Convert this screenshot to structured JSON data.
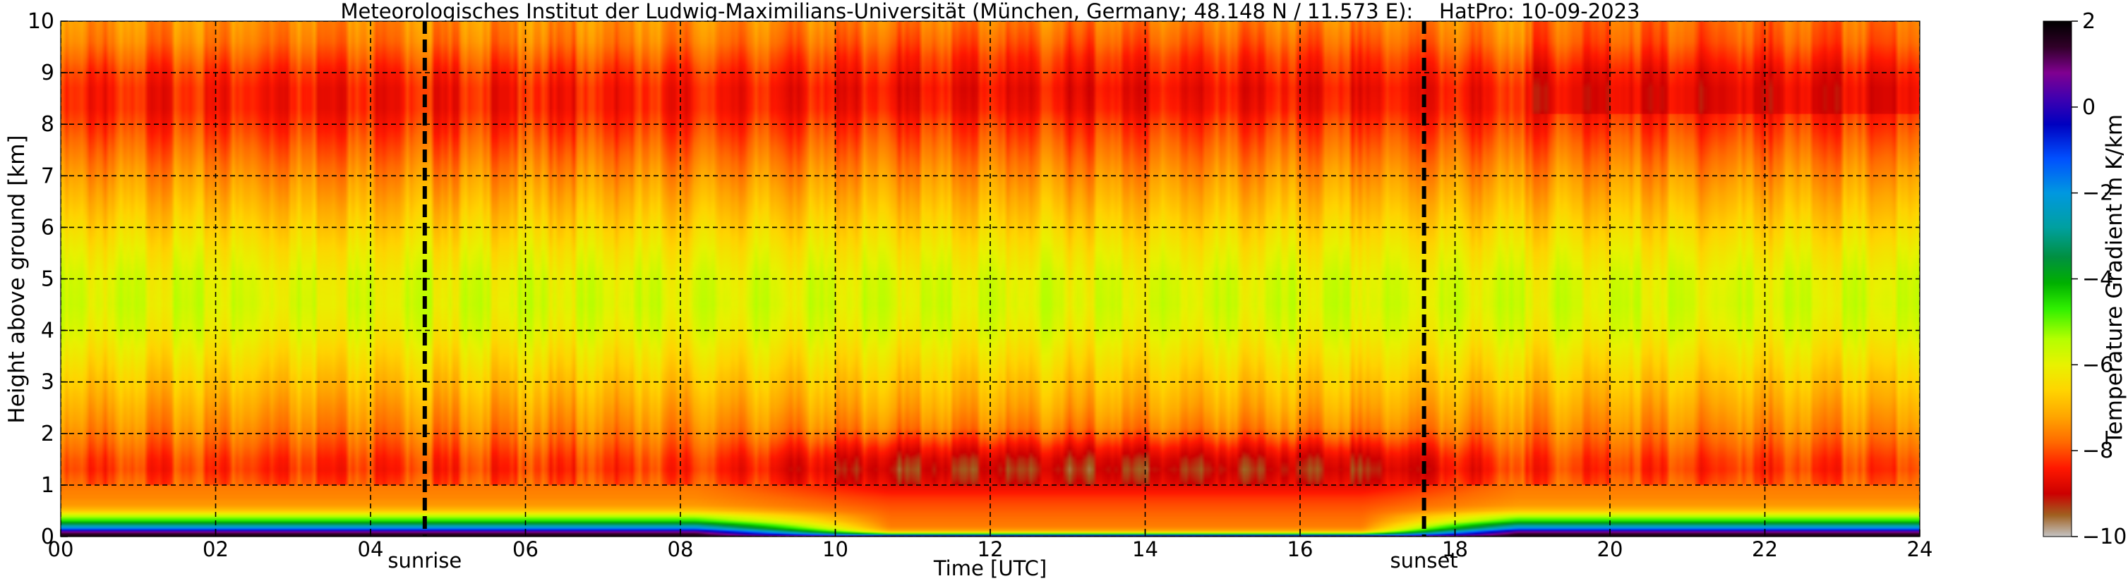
{
  "chart_data": {
    "type": "heatmap",
    "title": "Meteorologisches Institut der Ludwig-Maximilians-Universität (München, Germany; 48.148 N / 11.573 E):    HatPro: 10-09-2023",
    "xlabel": "Time [UTC]",
    "ylabel": "Height above ground [km]",
    "xlim": [
      0,
      24
    ],
    "ylim": [
      0,
      10
    ],
    "x_ticks": [
      0,
      2,
      4,
      6,
      8,
      10,
      12,
      14,
      16,
      18,
      20,
      22,
      24
    ],
    "x_tick_labels": [
      "00",
      "02",
      "04",
      "06",
      "08",
      "10",
      "12",
      "14",
      "16",
      "18",
      "20",
      "22",
      "24"
    ],
    "y_ticks": [
      0,
      1,
      2,
      3,
      4,
      5,
      6,
      7,
      8,
      9,
      10
    ],
    "y_tick_labels": [
      "0",
      "1",
      "2",
      "3",
      "4",
      "5",
      "6",
      "7",
      "8",
      "9",
      "10"
    ],
    "grid": true,
    "events": [
      {
        "label": "sunrise",
        "time": 4.7
      },
      {
        "label": "sunset",
        "time": 17.6
      }
    ],
    "colorbar": {
      "label": "Temperature Gradient in K/km",
      "range": [
        -10,
        2
      ],
      "ticks": [
        2,
        0,
        -2,
        -4,
        -6,
        -8,
        -10
      ],
      "tick_labels": [
        "2",
        "0",
        "−2",
        "−4",
        "−6",
        "−8",
        "−10"
      ],
      "stops": [
        {
          "value": -10.0,
          "color": "#c4c4c4"
        },
        {
          "value": -9.5,
          "color": "#a06020"
        },
        {
          "value": -9.0,
          "color": "#cc0000"
        },
        {
          "value": -8.4,
          "color": "#ff1800"
        },
        {
          "value": -7.8,
          "color": "#ff6a00"
        },
        {
          "value": -7.2,
          "color": "#ffa600"
        },
        {
          "value": -6.6,
          "color": "#ffd400"
        },
        {
          "value": -6.0,
          "color": "#e8f200"
        },
        {
          "value": -5.4,
          "color": "#b4ff00"
        },
        {
          "value": -4.7,
          "color": "#30f000"
        },
        {
          "value": -4.1,
          "color": "#00b000"
        },
        {
          "value": -3.5,
          "color": "#009040"
        },
        {
          "value": -2.8,
          "color": "#00a0a0"
        },
        {
          "value": -2.0,
          "color": "#0098e0"
        },
        {
          "value": -1.2,
          "color": "#0050ff"
        },
        {
          "value": -0.4,
          "color": "#0000c0"
        },
        {
          "value": 0.2,
          "color": "#4000b0"
        },
        {
          "value": 0.8,
          "color": "#800090"
        },
        {
          "value": 1.4,
          "color": "#300028"
        },
        {
          "value": 2.0,
          "color": "#000000"
        }
      ]
    },
    "profile": {
      "heights_km": [
        0.0,
        0.05,
        0.1,
        0.15,
        0.2,
        0.3,
        0.4,
        0.5,
        0.6,
        0.75,
        0.9,
        1.1,
        1.3,
        1.5,
        1.7,
        1.9,
        2.1,
        2.5,
        3.0,
        3.5,
        4.0,
        4.5,
        5.0,
        5.5,
        6.0,
        6.5,
        7.0,
        7.5,
        8.0,
        8.3,
        8.7,
        9.0,
        9.3,
        9.6,
        10.0
      ],
      "night_gradient": [
        1.8,
        1.5,
        0.5,
        -1.5,
        -2.5,
        -4.5,
        -5.5,
        -6.8,
        -7.3,
        -7.5,
        -7.6,
        -7.8,
        -8.0,
        -7.9,
        -7.7,
        -7.5,
        -7.3,
        -7.0,
        -6.6,
        -6.2,
        -5.8,
        -5.6,
        -5.7,
        -6.0,
        -6.4,
        -6.8,
        -7.2,
        -7.6,
        -8.0,
        -8.2,
        -8.2,
        -8.0,
        -7.7,
        -7.4,
        -7.2
      ],
      "day_gradient": [
        1.0,
        -4.5,
        -7.0,
        -7.4,
        -7.6,
        -7.7,
        -7.8,
        -7.9,
        -8.0,
        -8.2,
        -8.5,
        -8.8,
        -9.0,
        -8.8,
        -8.4,
        -7.9,
        -7.4,
        -7.0,
        -6.6,
        -6.2,
        -5.8,
        -5.6,
        -5.7,
        -6.0,
        -6.4,
        -6.8,
        -7.2,
        -7.6,
        -8.0,
        -8.3,
        -8.4,
        -8.2,
        -8.0,
        -7.7,
        -7.4
      ]
    }
  }
}
